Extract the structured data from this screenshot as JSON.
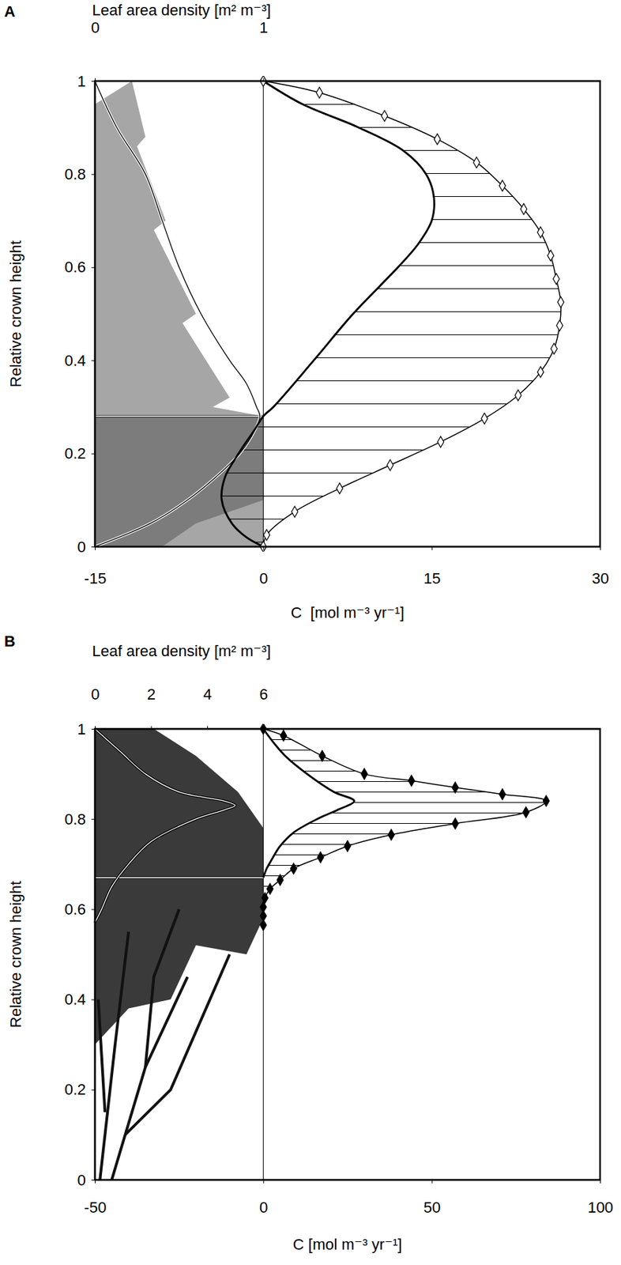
{
  "chart_data": [
    {
      "type": "line",
      "panel_label": "A",
      "x2label": "Leaf area density [m² m⁻³]",
      "xlabel": "C  [mol m⁻³ yr⁻¹]",
      "ylabel": "Relative crown height",
      "xlim": [
        -15,
        30
      ],
      "xticks": [
        -15,
        0,
        15,
        30
      ],
      "x2lim": [
        0,
        3
      ],
      "x2ticks": [
        0,
        1
      ],
      "ylim": [
        0,
        1
      ],
      "yticks": [
        0,
        0.2,
        0.4,
        0.6,
        0.8,
        1
      ],
      "reference_lines": [
        {
          "x": 0
        },
        {
          "y": 0.28,
          "xrange": [
            -15,
            0
          ]
        }
      ],
      "series": [
        {
          "axis": "x2",
          "type": "line",
          "line_style": "thin",
          "color": "#000000",
          "x": [
            0,
            0.33,
            0.55,
            0.72,
            0.86,
            0.95,
            0.98,
            0.96,
            0.9,
            0.8,
            0.63,
            0.5,
            0.4,
            0.3,
            0.13,
            0
          ],
          "y": [
            0,
            0.05,
            0.1,
            0.15,
            0.2,
            0.25,
            0.28,
            0.3,
            0.35,
            0.4,
            0.5,
            0.6,
            0.7,
            0.8,
            0.9,
            1
          ]
        },
        {
          "type": "line",
          "line_style": "thick",
          "color": "#000000",
          "x": [
            0,
            -1.5,
            -2.8,
            -3.7,
            -3.4,
            -2.2,
            -0.8,
            0,
            0.9,
            4.5,
            8,
            12,
            13.8,
            15,
            15.2,
            14.5,
            12.5,
            8.5,
            3.5,
            0
          ],
          "y": [
            0,
            0.02,
            0.05,
            0.1,
            0.15,
            0.2,
            0.25,
            0.28,
            0.3,
            0.4,
            0.5,
            0.6,
            0.65,
            0.7,
            0.75,
            0.8,
            0.85,
            0.9,
            0.95,
            1
          ]
        },
        {
          "type": "line",
          "line_style": "solid",
          "marker": "open-diamond",
          "color": "#000000",
          "x": [
            0,
            0.3,
            2.8,
            6.8,
            11.3,
            15.8,
            19.7,
            22.7,
            24.7,
            25.9,
            26.4,
            26.5,
            26.1,
            25.6,
            24.7,
            23.2,
            21.3,
            19,
            15.5,
            10.8,
            5,
            0
          ],
          "y": [
            0,
            0.025,
            0.075,
            0.125,
            0.175,
            0.225,
            0.275,
            0.325,
            0.375,
            0.425,
            0.475,
            0.525,
            0.575,
            0.625,
            0.675,
            0.725,
            0.775,
            0.825,
            0.875,
            0.925,
            0.975,
            1
          ]
        }
      ]
    },
    {
      "type": "line",
      "panel_label": "B",
      "x2label": "Leaf area density [m² m⁻³]",
      "xlabel": "C [mol m⁻³ yr⁻¹]",
      "ylabel": "Relative crown height",
      "xlim": [
        -50,
        100
      ],
      "xticks": [
        -50,
        0,
        50,
        100
      ],
      "x2lim": [
        0,
        18
      ],
      "x2ticks": [
        0,
        2,
        4,
        6
      ],
      "ylim": [
        0,
        1
      ],
      "yticks": [
        0,
        0.2,
        0.4,
        0.6,
        0.8,
        1
      ],
      "reference_lines": [
        {
          "x": 0
        },
        {
          "y": 0.67,
          "xrange": [
            -50,
            0
          ]
        }
      ],
      "series": [
        {
          "axis": "x2",
          "type": "line",
          "line_style": "thin",
          "color": "#ffffff",
          "x": [
            0,
            0.24,
            0.6,
            1.2,
            2,
            3.6,
            4.6,
            5,
            4.6,
            3,
            1.8,
            0.9,
            0
          ],
          "y": [
            0.57,
            0.6,
            0.65,
            0.7,
            0.75,
            0.8,
            0.82,
            0.83,
            0.84,
            0.86,
            0.9,
            0.95,
            1
          ]
        },
        {
          "type": "line",
          "line_style": "thick",
          "color": "#000000",
          "x": [
            0,
            1,
            2.5,
            5,
            9,
            16,
            22,
            27,
            21,
            13,
            6.5,
            3,
            0
          ],
          "y": [
            0.67,
            0.69,
            0.71,
            0.74,
            0.77,
            0.8,
            0.82,
            0.84,
            0.86,
            0.9,
            0.94,
            0.97,
            1
          ]
        },
        {
          "type": "line",
          "line_style": "solid",
          "marker": "diamond",
          "color": "#000000",
          "x": [
            0,
            6,
            17.5,
            30,
            44,
            57,
            71,
            84,
            78,
            57,
            38,
            25,
            17,
            9,
            5,
            2,
            0.5,
            0,
            0,
            0
          ],
          "y": [
            1,
            0.985,
            0.94,
            0.9,
            0.885,
            0.87,
            0.855,
            0.84,
            0.815,
            0.79,
            0.765,
            0.74,
            0.715,
            0.69,
            0.665,
            0.645,
            0.625,
            0.605,
            0.585,
            0.565
          ]
        }
      ]
    }
  ]
}
